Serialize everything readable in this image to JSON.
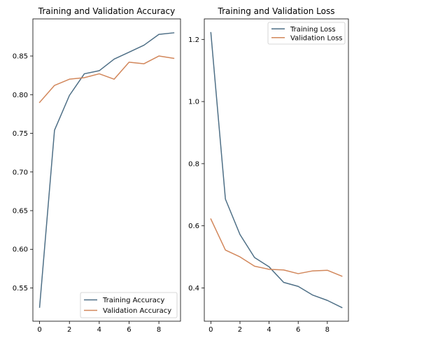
{
  "chart_data": [
    {
      "type": "line",
      "title": "Training and Validation Accuracy",
      "xlabel": "",
      "ylabel": "",
      "x": [
        0,
        1,
        2,
        3,
        4,
        5,
        6,
        7,
        8,
        9
      ],
      "series": [
        {
          "name": "Training Accuracy",
          "color": "#4e6f86",
          "values": [
            0.525,
            0.754,
            0.799,
            0.827,
            0.831,
            0.846,
            0.855,
            0.864,
            0.878,
            0.88
          ]
        },
        {
          "name": "Validation Accuracy",
          "color": "#d2875b",
          "values": [
            0.79,
            0.812,
            0.82,
            0.822,
            0.827,
            0.82,
            0.842,
            0.84,
            0.85,
            0.847
          ]
        }
      ],
      "xlim": [
        -0.45,
        9.45
      ],
      "ylim": [
        0.507,
        0.898
      ],
      "xticks": [
        0,
        2,
        4,
        6,
        8
      ],
      "xtick_labels": [
        "0",
        "2",
        "4",
        "6",
        "8"
      ],
      "yticks": [
        0.55,
        0.6,
        0.65,
        0.7,
        0.75,
        0.8,
        0.85
      ],
      "ytick_labels": [
        "0.55",
        "0.60",
        "0.65",
        "0.70",
        "0.75",
        "0.80",
        "0.85"
      ],
      "grid": false,
      "legend_position": "lower-right"
    },
    {
      "type": "line",
      "title": "Training and Validation Loss",
      "xlabel": "",
      "ylabel": "",
      "x": [
        0,
        1,
        2,
        3,
        4,
        5,
        6,
        7,
        8,
        9
      ],
      "series": [
        {
          "name": "Training Loss",
          "color": "#4e6f86",
          "values": [
            1.222,
            0.686,
            0.572,
            0.498,
            0.468,
            0.418,
            0.405,
            0.377,
            0.36,
            0.337
          ]
        },
        {
          "name": "Validation Loss",
          "color": "#d2875b",
          "values": [
            0.622,
            0.522,
            0.5,
            0.47,
            0.46,
            0.458,
            0.446,
            0.455,
            0.457,
            0.438
          ]
        }
      ],
      "xlim": [
        -0.45,
        9.45
      ],
      "ylim": [
        0.293,
        1.266
      ],
      "xticks": [
        0,
        2,
        4,
        6,
        8
      ],
      "xtick_labels": [
        "0",
        "2",
        "4",
        "6",
        "8"
      ],
      "yticks": [
        0.4,
        0.6,
        0.8,
        1.0,
        1.2
      ],
      "ytick_labels": [
        "0.4",
        "0.6",
        "0.8",
        "1.0",
        "1.2"
      ],
      "grid": false,
      "legend_position": "upper-right"
    }
  ]
}
